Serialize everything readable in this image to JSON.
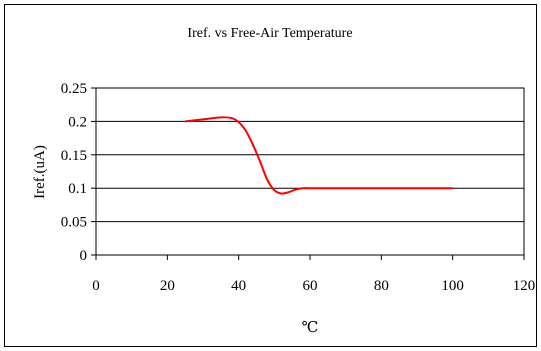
{
  "chart_data": {
    "type": "line",
    "title": "Iref. vs Free-Air Temperature",
    "xlabel": "℃",
    "ylabel": "Iref.(uA)",
    "xlim": [
      0,
      120
    ],
    "ylim": [
      0,
      0.25
    ],
    "x_ticks": [
      "0",
      "20",
      "40",
      "60",
      "80",
      "100",
      "120"
    ],
    "y_ticks": [
      "0",
      "0.05",
      "0.1",
      "0.15",
      "0.2",
      "0.25"
    ],
    "x_tick_values": [
      0,
      20,
      40,
      60,
      80,
      100,
      120
    ],
    "y_tick_values": [
      0,
      0.05,
      0.1,
      0.15,
      0.2,
      0.25
    ],
    "grid": "horizontal",
    "series": [
      {
        "color": "#ff0000",
        "x": [
          25,
          30,
          35,
          38,
          40,
          42,
          44,
          46,
          48,
          50,
          52,
          54,
          56,
          58,
          60,
          70,
          80,
          90,
          100
        ],
        "y": [
          0.2,
          0.203,
          0.206,
          0.205,
          0.199,
          0.186,
          0.165,
          0.14,
          0.113,
          0.097,
          0.092,
          0.094,
          0.098,
          0.1,
          0.1,
          0.1,
          0.1,
          0.1,
          0.1
        ]
      }
    ]
  }
}
